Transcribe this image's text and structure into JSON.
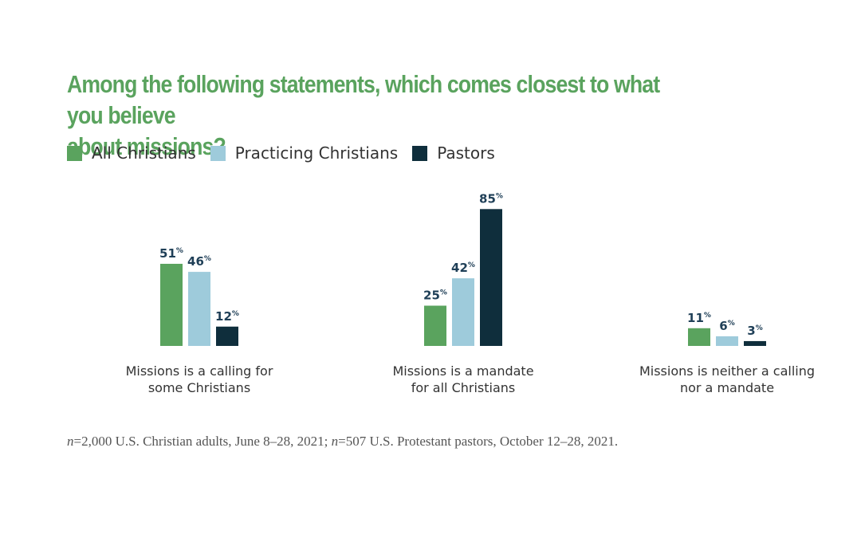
{
  "chart_data": {
    "type": "bar",
    "title": "Among the following statements, which comes closest to what you believe about missions?",
    "title_lines": [
      "Among the following statements, which comes closest to what you believe",
      "about missions?"
    ],
    "categories": [
      "Missions is a calling for some Christians",
      "Missions is a mandate for all Christians",
      "Missions is neither a calling nor a mandate"
    ],
    "category_lines": [
      [
        "Missions is a calling for",
        "some Christians"
      ],
      [
        "Missions is a mandate",
        "for all Christians"
      ],
      [
        "Missions is neither a calling",
        "nor a mandate"
      ]
    ],
    "series": [
      {
        "name": "All Christians",
        "color": "#5aa35e",
        "values": [
          51,
          25,
          11
        ]
      },
      {
        "name": "Practicing Christians",
        "color": "#9ecbdb",
        "values": [
          46,
          42,
          6
        ]
      },
      {
        "name": "Pastors",
        "color": "#0f2e3c",
        "values": [
          12,
          85,
          3
        ]
      }
    ],
    "value_suffix": "%",
    "ylim": [
      0,
      100
    ],
    "xlabel": "",
    "ylabel": "",
    "grid": false,
    "legend_position": "top-left"
  },
  "footnote": {
    "n1_symbol": "n",
    "n1_text": "=2,000 U.S. Christian adults, June 8–28, 2021; ",
    "n2_symbol": "n",
    "n2_text": "=507 U.S. Protestant pastors, October 12–28, 2021."
  }
}
